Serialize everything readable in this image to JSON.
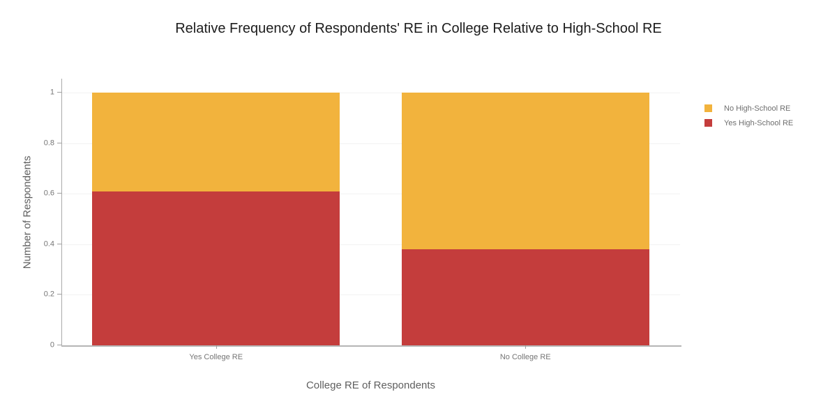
{
  "chart_data": {
    "type": "bar",
    "stacked": true,
    "title": "Relative Frequency of Respondents' RE in College Relative to High-School RE",
    "xlabel": "College RE of Respondents",
    "ylabel": "Number of Respondents",
    "categories": [
      "Yes College RE",
      "No College RE"
    ],
    "series": [
      {
        "name": "Yes High-School RE",
        "color": "#c43d3c",
        "values": [
          0.61,
          0.38
        ]
      },
      {
        "name": "No High-School RE",
        "color": "#f2b33d",
        "values": [
          0.39,
          0.62
        ]
      }
    ],
    "legend_order": [
      "No High-School RE",
      "Yes High-School RE"
    ],
    "legend_position": "right",
    "y_ticks": {
      "values": [
        0,
        0.2,
        0.4,
        0.6,
        0.8,
        1
      ],
      "labels": [
        "0",
        "0.2",
        "0.4",
        "0.6",
        "0.8",
        "1"
      ]
    },
    "ylim": [
      0,
      1.05
    ],
    "grid": true,
    "axis_colors": {
      "grid": "#f2f2f2",
      "axis_line": "#b5b5b5",
      "tick_text": "#757575",
      "axis_title_text": "#5f5f5f",
      "title_text": "#1c1c1c"
    }
  }
}
